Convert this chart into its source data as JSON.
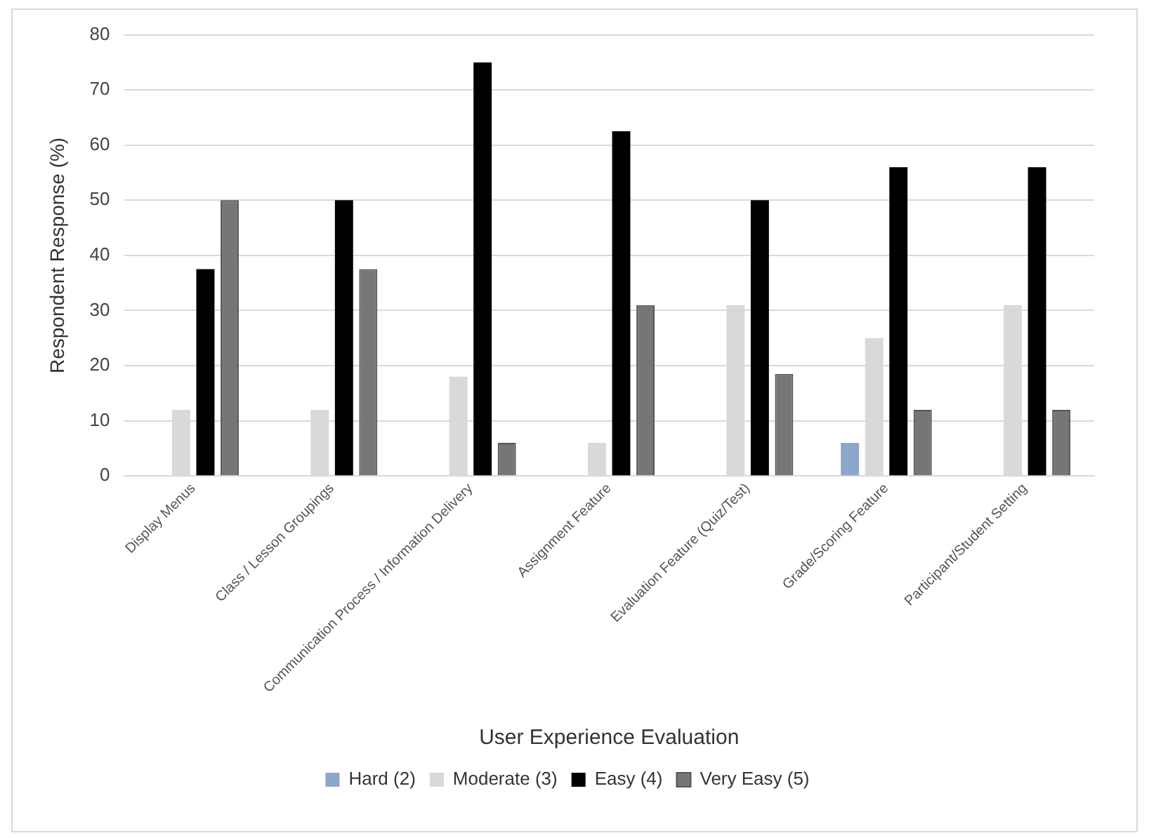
{
  "chart_data": {
    "type": "bar",
    "xlabel": "User Experience Evaluation",
    "ylabel": "Respondent Response (%)",
    "categories": [
      "Display Menus",
      "Class / Lesson Groupings",
      "Communication Process / Information Delivery",
      "Assignment Feature",
      "Evaluation Feature (Quiz/Test)",
      "Grade/Scoring Feature",
      "Participant/Student Setting"
    ],
    "series": [
      {
        "name": "Hard (2)",
        "color": "#8ea6cc",
        "values": [
          0,
          0,
          0,
          0,
          0,
          6,
          0
        ]
      },
      {
        "name": "Moderate (3)",
        "color": "#d9d9d9",
        "values": [
          12,
          12,
          18,
          6,
          31,
          25,
          31
        ]
      },
      {
        "name": "Easy (4)",
        "color": "#000000",
        "values": [
          37.5,
          50,
          75,
          62.5,
          50,
          56,
          56
        ]
      },
      {
        "name": "Very Easy (5)",
        "color": "#767676",
        "values": [
          50,
          37.5,
          6,
          31,
          18.5,
          12,
          12
        ]
      }
    ],
    "ylim": [
      0,
      80
    ],
    "yticks": [
      0,
      10,
      20,
      30,
      40,
      50,
      60,
      70,
      80
    ],
    "grid": "y",
    "legend": "bottom"
  }
}
